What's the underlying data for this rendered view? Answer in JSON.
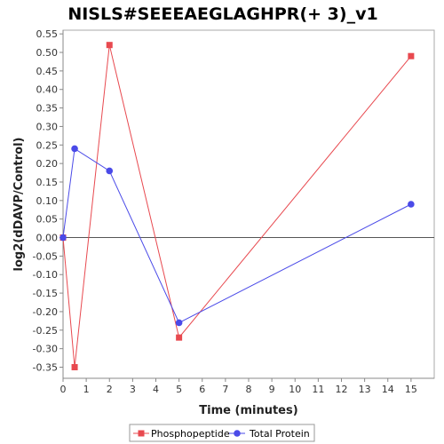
{
  "chart_data": {
    "type": "line",
    "title": "NISLS#SEEEAEGLAGHPR(+ 3)_v1",
    "xlabel": "Time (minutes)",
    "ylabel": "log2(dDAVP/Control)",
    "xlim": [
      0,
      16
    ],
    "ylim": [
      -0.38,
      0.56
    ],
    "x_ticks": [
      0,
      1,
      2,
      3,
      4,
      5,
      6,
      7,
      8,
      9,
      10,
      11,
      12,
      13,
      14,
      15
    ],
    "y_ticks": [
      0.55,
      0.5,
      0.45,
      0.4,
      0.35,
      0.3,
      0.25,
      0.2,
      0.15,
      0.1,
      0.05,
      0.0,
      -0.05,
      -0.1,
      -0.15,
      -0.2,
      -0.25,
      -0.3,
      -0.35
    ],
    "y_tick_labels": [
      "0.55",
      "0.50",
      "0.45",
      "0.40",
      "0.35",
      "0.30",
      "0.25",
      "0.20",
      "0.15",
      "0.10",
      "0.05",
      "0.00",
      "-0.05",
      "-0.10",
      "-0.15",
      "-0.20",
      "-0.25",
      "-0.30",
      "-0.35"
    ],
    "grid": false,
    "zero_line": true,
    "legend_position": "bottom",
    "series": [
      {
        "name": "Phosphopeptide",
        "color": "#e8494f",
        "marker": "square",
        "x": [
          0,
          0.5,
          2,
          5,
          15
        ],
        "y": [
          0.0,
          -0.35,
          0.52,
          -0.27,
          0.49
        ]
      },
      {
        "name": "Total Protein",
        "color": "#4a4ae8",
        "marker": "circle",
        "x": [
          0,
          0.5,
          2,
          5,
          15
        ],
        "y": [
          0.0,
          0.24,
          0.18,
          -0.23,
          0.09
        ]
      }
    ]
  }
}
